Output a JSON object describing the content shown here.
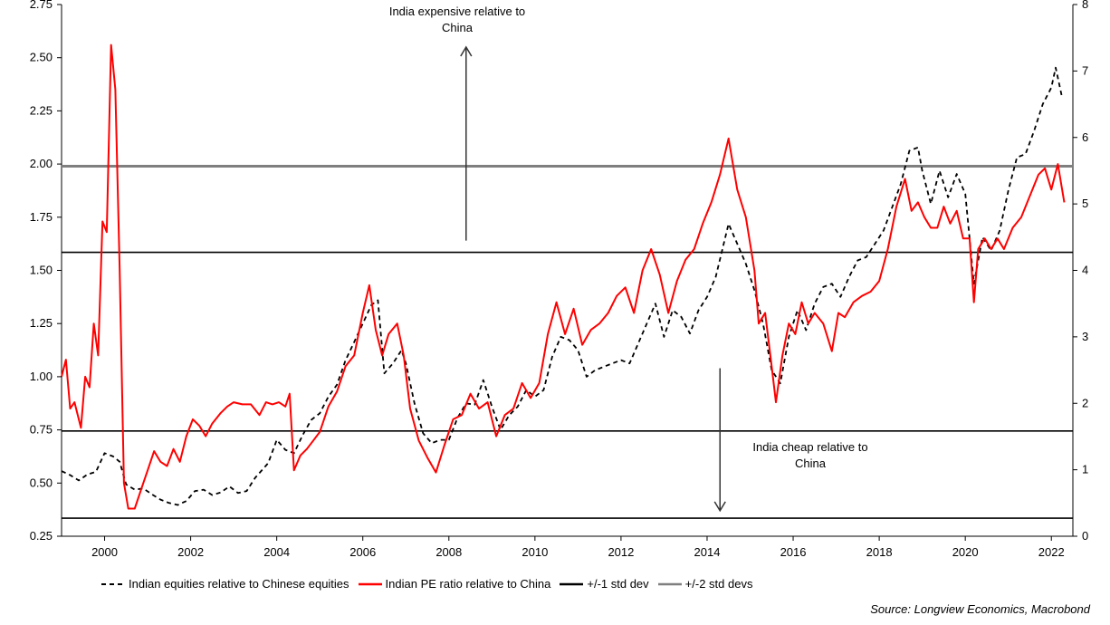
{
  "chart_data": {
    "type": "line",
    "xlim": [
      1999.0,
      2022.5
    ],
    "x_ticks": [
      "2000",
      "2002",
      "2004",
      "2006",
      "2008",
      "2010",
      "2012",
      "2014",
      "2016",
      "2018",
      "2020",
      "2022"
    ],
    "x_tick_values": [
      2000,
      2002,
      2004,
      2006,
      2008,
      2010,
      2012,
      2014,
      2016,
      2018,
      2020,
      2022
    ],
    "y_left": {
      "lim": [
        0.25,
        2.75
      ],
      "ticks": [
        "0.25",
        "0.50",
        "0.75",
        "1.00",
        "1.25",
        "1.50",
        "1.75",
        "2.00",
        "2.25",
        "2.50",
        "2.75"
      ]
    },
    "y_right": {
      "lim": [
        0,
        8
      ],
      "ticks": [
        "0",
        "1",
        "2",
        "3",
        "4",
        "5",
        "6",
        "7",
        "8"
      ]
    },
    "reference_lines": [
      {
        "name": "+/-2 std devs",
        "y_left": 1.99,
        "color": "#7f7f7f"
      },
      {
        "name": "+/-1 std dev",
        "y_left": 1.585,
        "color": "#000000"
      },
      {
        "name": "+/-1 std dev",
        "y_left": 0.745,
        "color": "#000000"
      },
      {
        "name": "+/-2 std devs",
        "y_left": 0.335,
        "color": "#000000"
      }
    ],
    "annotations": [
      {
        "text": [
          "India expensive relative to",
          "China"
        ],
        "arrow": "up",
        "x": 2008.4,
        "y_from": 1.64,
        "y_to": 2.55
      },
      {
        "text": [
          "India cheap relative to",
          "China"
        ],
        "arrow": "down",
        "x": 2014.3,
        "y_from": 1.04,
        "y_to": 0.37
      }
    ],
    "series": [
      {
        "name": "Indian equities relative to Chinese equities",
        "axis": "right",
        "color": "#000000",
        "dash": "5,4",
        "points": [
          [
            1999.0,
            0.98
          ],
          [
            1999.2,
            0.92
          ],
          [
            1999.4,
            0.84
          ],
          [
            1999.6,
            0.93
          ],
          [
            1999.8,
            0.97
          ],
          [
            2000.0,
            1.25
          ],
          [
            2000.2,
            1.2
          ],
          [
            2000.35,
            1.12
          ],
          [
            2000.5,
            0.78
          ],
          [
            2000.7,
            0.7
          ],
          [
            2000.9,
            0.72
          ],
          [
            2001.1,
            0.63
          ],
          [
            2001.3,
            0.55
          ],
          [
            2001.5,
            0.5
          ],
          [
            2001.7,
            0.47
          ],
          [
            2001.9,
            0.53
          ],
          [
            2002.1,
            0.68
          ],
          [
            2002.3,
            0.7
          ],
          [
            2002.5,
            0.62
          ],
          [
            2002.7,
            0.66
          ],
          [
            2002.9,
            0.75
          ],
          [
            2003.1,
            0.65
          ],
          [
            2003.3,
            0.68
          ],
          [
            2003.5,
            0.88
          ],
          [
            2003.8,
            1.1
          ],
          [
            2004.0,
            1.45
          ],
          [
            2004.2,
            1.3
          ],
          [
            2004.4,
            1.25
          ],
          [
            2004.6,
            1.52
          ],
          [
            2004.8,
            1.75
          ],
          [
            2005.0,
            1.85
          ],
          [
            2005.2,
            2.1
          ],
          [
            2005.4,
            2.28
          ],
          [
            2005.6,
            2.65
          ],
          [
            2005.8,
            2.92
          ],
          [
            2006.0,
            3.2
          ],
          [
            2006.2,
            3.48
          ],
          [
            2006.35,
            3.55
          ],
          [
            2006.5,
            2.45
          ],
          [
            2006.7,
            2.6
          ],
          [
            2006.9,
            2.8
          ],
          [
            2007.0,
            2.6
          ],
          [
            2007.2,
            2.0
          ],
          [
            2007.4,
            1.55
          ],
          [
            2007.6,
            1.4
          ],
          [
            2007.8,
            1.45
          ],
          [
            2008.0,
            1.45
          ],
          [
            2008.2,
            1.78
          ],
          [
            2008.4,
            2.0
          ],
          [
            2008.6,
            1.98
          ],
          [
            2008.8,
            2.35
          ],
          [
            2009.0,
            1.95
          ],
          [
            2009.2,
            1.6
          ],
          [
            2009.4,
            1.82
          ],
          [
            2009.6,
            1.95
          ],
          [
            2009.8,
            2.2
          ],
          [
            2010.0,
            2.1
          ],
          [
            2010.2,
            2.2
          ],
          [
            2010.4,
            2.7
          ],
          [
            2010.6,
            3.0
          ],
          [
            2010.8,
            2.95
          ],
          [
            2011.0,
            2.8
          ],
          [
            2011.2,
            2.4
          ],
          [
            2011.4,
            2.5
          ],
          [
            2011.6,
            2.55
          ],
          [
            2011.8,
            2.6
          ],
          [
            2012.0,
            2.65
          ],
          [
            2012.2,
            2.6
          ],
          [
            2012.4,
            2.9
          ],
          [
            2012.6,
            3.2
          ],
          [
            2012.8,
            3.5
          ],
          [
            2013.0,
            3.0
          ],
          [
            2013.2,
            3.4
          ],
          [
            2013.4,
            3.3
          ],
          [
            2013.6,
            3.05
          ],
          [
            2013.8,
            3.4
          ],
          [
            2014.0,
            3.6
          ],
          [
            2014.2,
            3.9
          ],
          [
            2014.5,
            4.7
          ],
          [
            2014.7,
            4.4
          ],
          [
            2014.9,
            4.1
          ],
          [
            2015.1,
            3.7
          ],
          [
            2015.3,
            3.2
          ],
          [
            2015.5,
            2.5
          ],
          [
            2015.7,
            2.3
          ],
          [
            2015.9,
            3.0
          ],
          [
            2016.1,
            3.4
          ],
          [
            2016.3,
            3.1
          ],
          [
            2016.5,
            3.5
          ],
          [
            2016.7,
            3.75
          ],
          [
            2016.9,
            3.8
          ],
          [
            2017.1,
            3.6
          ],
          [
            2017.3,
            3.9
          ],
          [
            2017.5,
            4.15
          ],
          [
            2017.7,
            4.2
          ],
          [
            2017.9,
            4.4
          ],
          [
            2018.1,
            4.6
          ],
          [
            2018.3,
            4.95
          ],
          [
            2018.5,
            5.3
          ],
          [
            2018.7,
            5.8
          ],
          [
            2018.9,
            5.85
          ],
          [
            2019.0,
            5.5
          ],
          [
            2019.2,
            5.0
          ],
          [
            2019.4,
            5.5
          ],
          [
            2019.6,
            5.1
          ],
          [
            2019.8,
            5.45
          ],
          [
            2020.0,
            5.15
          ],
          [
            2020.2,
            3.8
          ],
          [
            2020.4,
            4.5
          ],
          [
            2020.6,
            4.3
          ],
          [
            2020.8,
            4.6
          ],
          [
            2021.0,
            5.2
          ],
          [
            2021.2,
            5.7
          ],
          [
            2021.4,
            5.75
          ],
          [
            2021.6,
            6.1
          ],
          [
            2021.8,
            6.5
          ],
          [
            2022.0,
            6.75
          ],
          [
            2022.1,
            7.05
          ],
          [
            2022.25,
            6.6
          ]
        ]
      },
      {
        "name": "Indian PE ratio relative to China",
        "axis": "left",
        "color": "#ff0000",
        "dash": "",
        "points": [
          [
            1999.0,
            1.0
          ],
          [
            1999.1,
            1.08
          ],
          [
            1999.2,
            0.85
          ],
          [
            1999.3,
            0.88
          ],
          [
            1999.45,
            0.76
          ],
          [
            1999.55,
            1.0
          ],
          [
            1999.65,
            0.95
          ],
          [
            1999.75,
            1.25
          ],
          [
            1999.85,
            1.1
          ],
          [
            1999.95,
            1.73
          ],
          [
            2000.05,
            1.68
          ],
          [
            2000.15,
            2.56
          ],
          [
            2000.25,
            2.35
          ],
          [
            2000.35,
            1.5
          ],
          [
            2000.45,
            0.5
          ],
          [
            2000.55,
            0.38
          ],
          [
            2000.7,
            0.38
          ],
          [
            2000.85,
            0.47
          ],
          [
            2001.0,
            0.56
          ],
          [
            2001.15,
            0.65
          ],
          [
            2001.3,
            0.6
          ],
          [
            2001.45,
            0.58
          ],
          [
            2001.6,
            0.66
          ],
          [
            2001.75,
            0.6
          ],
          [
            2001.9,
            0.72
          ],
          [
            2002.05,
            0.8
          ],
          [
            2002.2,
            0.77
          ],
          [
            2002.35,
            0.72
          ],
          [
            2002.5,
            0.78
          ],
          [
            2002.7,
            0.83
          ],
          [
            2002.85,
            0.86
          ],
          [
            2003.0,
            0.88
          ],
          [
            2003.2,
            0.87
          ],
          [
            2003.4,
            0.87
          ],
          [
            2003.6,
            0.82
          ],
          [
            2003.75,
            0.88
          ],
          [
            2003.9,
            0.87
          ],
          [
            2004.05,
            0.88
          ],
          [
            2004.2,
            0.86
          ],
          [
            2004.3,
            0.92
          ],
          [
            2004.4,
            0.56
          ],
          [
            2004.55,
            0.63
          ],
          [
            2004.7,
            0.66
          ],
          [
            2004.85,
            0.7
          ],
          [
            2005.0,
            0.74
          ],
          [
            2005.2,
            0.86
          ],
          [
            2005.4,
            0.93
          ],
          [
            2005.6,
            1.05
          ],
          [
            2005.8,
            1.1
          ],
          [
            2006.0,
            1.3
          ],
          [
            2006.15,
            1.43
          ],
          [
            2006.3,
            1.22
          ],
          [
            2006.45,
            1.1
          ],
          [
            2006.6,
            1.2
          ],
          [
            2006.8,
            1.25
          ],
          [
            2006.95,
            1.1
          ],
          [
            2007.1,
            0.85
          ],
          [
            2007.3,
            0.7
          ],
          [
            2007.5,
            0.62
          ],
          [
            2007.7,
            0.55
          ],
          [
            2007.9,
            0.68
          ],
          [
            2008.1,
            0.8
          ],
          [
            2008.3,
            0.82
          ],
          [
            2008.5,
            0.92
          ],
          [
            2008.7,
            0.85
          ],
          [
            2008.9,
            0.88
          ],
          [
            2009.1,
            0.72
          ],
          [
            2009.3,
            0.82
          ],
          [
            2009.5,
            0.85
          ],
          [
            2009.7,
            0.97
          ],
          [
            2009.9,
            0.9
          ],
          [
            2010.1,
            0.97
          ],
          [
            2010.3,
            1.2
          ],
          [
            2010.5,
            1.35
          ],
          [
            2010.7,
            1.2
          ],
          [
            2010.9,
            1.32
          ],
          [
            2011.1,
            1.15
          ],
          [
            2011.3,
            1.22
          ],
          [
            2011.5,
            1.25
          ],
          [
            2011.7,
            1.3
          ],
          [
            2011.9,
            1.38
          ],
          [
            2012.1,
            1.42
          ],
          [
            2012.3,
            1.3
          ],
          [
            2012.5,
            1.5
          ],
          [
            2012.7,
            1.6
          ],
          [
            2012.9,
            1.48
          ],
          [
            2013.1,
            1.3
          ],
          [
            2013.3,
            1.45
          ],
          [
            2013.5,
            1.55
          ],
          [
            2013.7,
            1.6
          ],
          [
            2013.9,
            1.72
          ],
          [
            2014.1,
            1.82
          ],
          [
            2014.3,
            1.95
          ],
          [
            2014.5,
            2.12
          ],
          [
            2014.7,
            1.88
          ],
          [
            2014.9,
            1.75
          ],
          [
            2015.1,
            1.5
          ],
          [
            2015.2,
            1.25
          ],
          [
            2015.35,
            1.3
          ],
          [
            2015.5,
            1.05
          ],
          [
            2015.6,
            0.88
          ],
          [
            2015.75,
            1.1
          ],
          [
            2015.9,
            1.25
          ],
          [
            2016.05,
            1.2
          ],
          [
            2016.2,
            1.35
          ],
          [
            2016.35,
            1.25
          ],
          [
            2016.5,
            1.3
          ],
          [
            2016.7,
            1.25
          ],
          [
            2016.9,
            1.12
          ],
          [
            2017.05,
            1.3
          ],
          [
            2017.2,
            1.28
          ],
          [
            2017.4,
            1.35
          ],
          [
            2017.6,
            1.38
          ],
          [
            2017.8,
            1.4
          ],
          [
            2018.0,
            1.45
          ],
          [
            2018.2,
            1.6
          ],
          [
            2018.4,
            1.8
          ],
          [
            2018.6,
            1.93
          ],
          [
            2018.75,
            1.78
          ],
          [
            2018.9,
            1.82
          ],
          [
            2019.05,
            1.75
          ],
          [
            2019.2,
            1.7
          ],
          [
            2019.35,
            1.7
          ],
          [
            2019.5,
            1.8
          ],
          [
            2019.65,
            1.72
          ],
          [
            2019.8,
            1.78
          ],
          [
            2019.95,
            1.65
          ],
          [
            2020.1,
            1.65
          ],
          [
            2020.2,
            1.35
          ],
          [
            2020.3,
            1.6
          ],
          [
            2020.45,
            1.65
          ],
          [
            2020.6,
            1.6
          ],
          [
            2020.75,
            1.65
          ],
          [
            2020.9,
            1.6
          ],
          [
            2021.1,
            1.7
          ],
          [
            2021.3,
            1.75
          ],
          [
            2021.5,
            1.85
          ],
          [
            2021.7,
            1.95
          ],
          [
            2021.85,
            1.98
          ],
          [
            2022.0,
            1.88
          ],
          [
            2022.15,
            2.0
          ],
          [
            2022.3,
            1.82
          ]
        ]
      }
    ],
    "legend": {
      "placement": "bottom",
      "entries": [
        {
          "label": "Indian equities relative to Chinese equities",
          "color": "#000000",
          "style": "dashed"
        },
        {
          "label": "Indian PE ratio relative to China",
          "color": "#ff0000",
          "style": "solid"
        },
        {
          "label": "+/-1 std dev",
          "color": "#000000",
          "style": "solid"
        },
        {
          "label": "+/-2 std devs",
          "color": "#7f7f7f",
          "style": "solid"
        }
      ]
    },
    "source": "Source: Longview Economics, Macrobond"
  }
}
